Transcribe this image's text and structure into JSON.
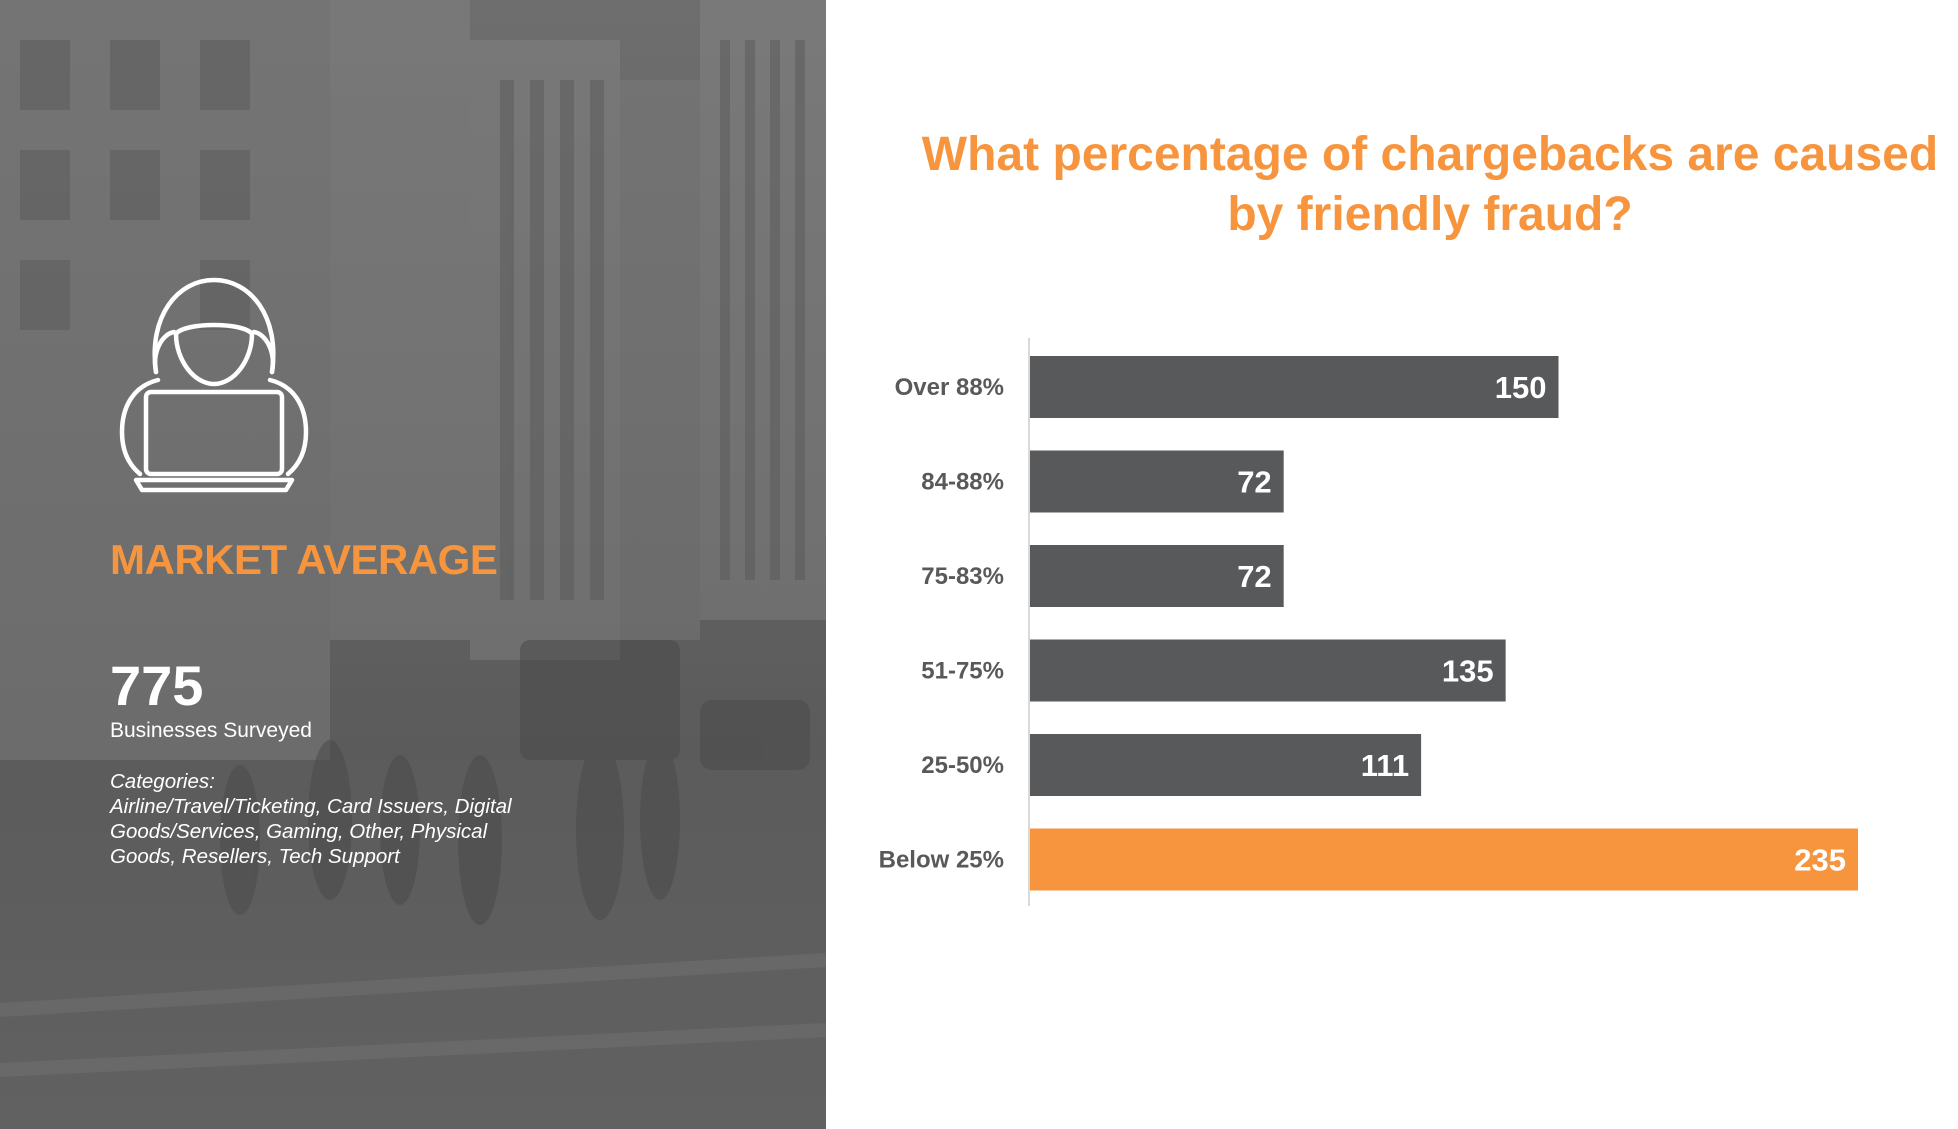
{
  "left_panel": {
    "heading": "MARKET AVERAGE",
    "businesses_count": "775",
    "businesses_label": "Businesses Surveyed",
    "categories_text": "Categories:\nAirline/Travel/Ticketing, Card Issuers, Digital Goods/Services, Gaming, Other, Physical Goods, Resellers, Tech Support",
    "icon": "hooded-hacker-laptop-icon"
  },
  "chart_data": {
    "type": "bar",
    "orientation": "horizontal",
    "title": "What percentage of chargebacks are caused by friendly fraud?",
    "categories": [
      "Over 88%",
      "84-88%",
      "75-83%",
      "51-75%",
      "25-50%",
      "Below 25%"
    ],
    "values": [
      150,
      72,
      72,
      135,
      111,
      235
    ],
    "data_labels": [
      "150",
      "72",
      "72",
      "135",
      "111",
      "235"
    ],
    "highlight_index": 5,
    "xlim": [
      0,
      235
    ],
    "grid": false,
    "legend": "none",
    "colors": {
      "bar": "#58595b",
      "highlight": "#f7953f",
      "title": "#f7953f",
      "label": "#58595b"
    }
  }
}
